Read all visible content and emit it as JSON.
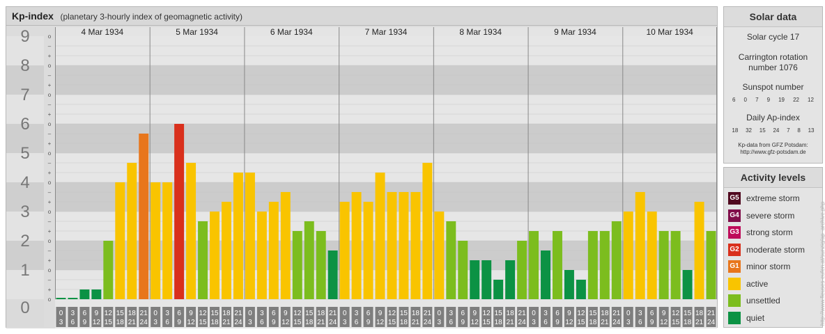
{
  "header": {
    "title": "Kp-index",
    "subtitle": "(planetary 3-hourly index of geomagnetic activity)"
  },
  "chart_data": {
    "type": "bar",
    "title": "Kp-index",
    "subtitle": "(planetary 3-hourly index of geomagnetic activity)",
    "ylim": [
      0,
      9
    ],
    "y_ticks": [
      "0",
      "1",
      "2",
      "3",
      "4",
      "5",
      "6",
      "7",
      "8",
      "9"
    ],
    "y_minor_ticks": [
      "o",
      "+",
      "–",
      "o"
    ],
    "days": [
      "4 Mar 1934",
      "5 Mar 1934",
      "6 Mar 1934",
      "7 Mar 1934",
      "8 Mar 1934",
      "9 Mar 1934",
      "10 Mar 1934"
    ],
    "interval_labels": [
      [
        "0",
        "3"
      ],
      [
        "3",
        "6"
      ],
      [
        "6",
        "9"
      ],
      [
        "9",
        "12"
      ],
      [
        "12",
        "15"
      ],
      [
        "15",
        "18"
      ],
      [
        "18",
        "21"
      ],
      [
        "21",
        "24"
      ]
    ],
    "values": [
      [
        0.0,
        0.0,
        0.333,
        0.333,
        2.0,
        4.0,
        4.667,
        5.667
      ],
      [
        4.0,
        4.0,
        6.0,
        4.667,
        2.667,
        3.0,
        3.333,
        4.333
      ],
      [
        4.333,
        3.0,
        3.333,
        3.667,
        2.333,
        2.667,
        2.333,
        1.667
      ],
      [
        3.333,
        3.667,
        3.333,
        4.333,
        3.667,
        3.667,
        3.667,
        4.667
      ],
      [
        3.0,
        2.667,
        2.0,
        1.333,
        1.333,
        0.667,
        1.333,
        2.0
      ],
      [
        2.333,
        1.667,
        2.333,
        1.0,
        0.667,
        2.333,
        2.333,
        2.667
      ],
      [
        3.0,
        3.667,
        3.0,
        2.333,
        2.333,
        1.0,
        3.333,
        2.333
      ]
    ],
    "colors": {
      "quiet": "#0c9244",
      "unsettled": "#7cbd1e",
      "active": "#f9c400",
      "G1": "#e8761c",
      "G2": "#d9301c",
      "G3": "#be0c5a",
      "G4": "#800e4a",
      "G5": "#50091f"
    }
  },
  "solar": {
    "title": "Solar data",
    "cycle": "Solar cycle 17",
    "carrington_line1": "Carrington rotation",
    "carrington_line2": "number 1076",
    "sunspot_title": "Sunspot number",
    "sunspot_values": [
      "6",
      "0",
      "7",
      "9",
      "19",
      "22",
      "12"
    ],
    "ap_title": "Daily Ap-index",
    "ap_values": [
      "18",
      "32",
      "15",
      "24",
      "7",
      "8",
      "13"
    ],
    "credit_line1": "Kp-data from GFZ Potsdam:",
    "credit_line2": "http://www.gfz-potsdam.de"
  },
  "activity": {
    "title": "Activity levels",
    "levels": [
      {
        "tag": "G5",
        "label": "extreme storm",
        "color": "#50091f"
      },
      {
        "tag": "G4",
        "label": "severe storm",
        "color": "#800e4a"
      },
      {
        "tag": "G3",
        "label": "strong storm",
        "color": "#be0c5a"
      },
      {
        "tag": "G2",
        "label": "moderate storm",
        "color": "#d9301c"
      },
      {
        "tag": "G1",
        "label": "minor storm",
        "color": "#e8761c"
      },
      {
        "tag": "",
        "label": "active",
        "color": "#f9c400"
      },
      {
        "tag": "",
        "label": "unsettled",
        "color": "#7cbd1e"
      },
      {
        "tag": "",
        "label": "quiet",
        "color": "#0c9244"
      }
    ]
  },
  "credit": "http://www.fleuses-eufen.at/sunzig/ap_archive.php"
}
